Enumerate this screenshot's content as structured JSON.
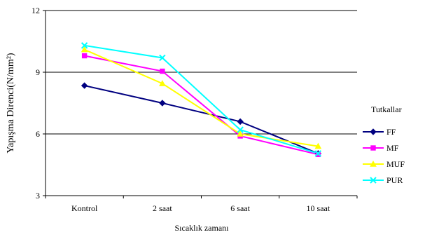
{
  "chart_data": {
    "type": "line",
    "title": "",
    "xlabel": "Sıcaklık zamanı",
    "ylabel": "Yapışma Direnci(N/mm²)",
    "categories": [
      "Kontrol",
      "2 saat",
      "6 saat",
      "10 saat"
    ],
    "ylim": [
      3,
      12
    ],
    "yticks": [
      "3",
      "6",
      "9",
      "12"
    ],
    "grid": true,
    "legend": {
      "title": "Tutkallar",
      "position": "right"
    },
    "series": [
      {
        "name": "FF",
        "color": "#000080",
        "marker": "diamond",
        "values": [
          8.35,
          7.5,
          6.6,
          5.05
        ]
      },
      {
        "name": "MF",
        "color": "#ff00ff",
        "marker": "square",
        "values": [
          9.8,
          9.05,
          5.9,
          5.0
        ]
      },
      {
        "name": "MUF",
        "color": "#ffff00",
        "marker": "triangle",
        "values": [
          10.1,
          8.45,
          6.0,
          5.4
        ]
      },
      {
        "name": "PUR",
        "color": "#00ffff",
        "marker": "x",
        "values": [
          10.3,
          9.7,
          6.2,
          5.05
        ]
      }
    ]
  }
}
